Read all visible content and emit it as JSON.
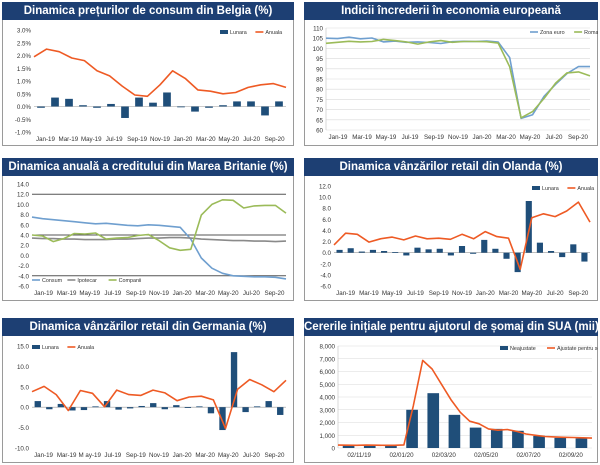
{
  "colors": {
    "title_bg": "#1d3f73",
    "bar": "#1f4e79",
    "orange": "#ee5a24",
    "blue_line": "#6f9fcf",
    "green_line": "#9bbb59",
    "gray_line": "#8a8a8a"
  },
  "chart_data": [
    {
      "id": "c1",
      "type": "bar+line",
      "title": "Dinamica prețurilor de consum din Belgia (%)",
      "ylim": [
        -1.0,
        3.0
      ],
      "yticks": [
        -1.0,
        -0.5,
        0.0,
        0.5,
        1.0,
        1.5,
        2.0,
        2.5,
        3.0
      ],
      "ytick_labels": [
        "-1.0%",
        "-0.5%",
        "0.0%",
        "0.5%",
        "1.0%",
        "1.5%",
        "2.0%",
        "2.5%",
        "3.0%"
      ],
      "xtick_labels": [
        "Jan-19",
        "Mar-19",
        "May-19",
        "Jul-19",
        "Sep-19",
        "Nov-19",
        "Jan-20",
        "Mar-20",
        "May-20",
        "Jul-20",
        "Sep-20"
      ],
      "legend": "top-right",
      "series": [
        {
          "name": "Lunara",
          "kind": "bar",
          "values": [
            -0.05,
            0.35,
            0.3,
            0.05,
            -0.05,
            0.1,
            -0.45,
            0.35,
            0.15,
            0.55,
            -0.02,
            -0.2,
            -0.05,
            0.05,
            0.2,
            0.2,
            -0.35,
            0.2
          ]
        },
        {
          "name": "Anuala",
          "kind": "line",
          "values": [
            1.95,
            2.25,
            2.15,
            1.9,
            1.8,
            1.4,
            1.2,
            0.8,
            0.45,
            0.4,
            0.85,
            1.4,
            1.1,
            0.65,
            0.6,
            0.5,
            0.55,
            0.75,
            0.85,
            0.9,
            0.75
          ]
        }
      ]
    },
    {
      "id": "c2",
      "type": "line",
      "title": "Indicii încrederii în economia europeană",
      "ylim": [
        60,
        110
      ],
      "yticks": [
        60,
        65,
        70,
        75,
        80,
        85,
        90,
        95,
        100,
        105,
        110
      ],
      "ytick_labels": [
        "60",
        "65",
        "70",
        "75",
        "80",
        "85",
        "90",
        "95",
        "100",
        "105",
        "110"
      ],
      "xtick_labels": [
        "Jan-19",
        "Mar-19",
        "May-19",
        "Jul-19",
        "Sep-19",
        "Nov-19",
        "Jan-20",
        "Mar-20",
        "May-20",
        "Jul-20",
        "Sep-20"
      ],
      "legend": "top-right",
      "series": [
        {
          "name": "Zona euro",
          "kind": "line",
          "values": [
            105,
            104.8,
            105.5,
            104.7,
            105.1,
            103.2,
            103.6,
            103,
            103.2,
            102.9,
            102.4,
            103.3,
            103.5,
            103.4,
            103.6,
            103.1,
            95.5,
            65.7,
            67.5,
            76.5,
            82.4,
            87.7,
            91.1,
            91.1
          ]
        },
        {
          "name": "Romania",
          "kind": "line",
          "values": [
            102.5,
            103,
            103.5,
            103.2,
            103.4,
            104.4,
            103.8,
            103.2,
            102.1,
            103.2,
            103.8,
            103,
            103.4,
            103.4,
            103.3,
            102.6,
            91,
            66,
            69,
            75.5,
            83,
            88,
            88.5,
            86.5
          ]
        }
      ]
    },
    {
      "id": "c3",
      "type": "line",
      "title": "Dinamica anuală a creditului din Marea Britanie (%)",
      "ylim": [
        -6,
        14
      ],
      "yticks": [
        -6,
        -4,
        -2,
        0,
        2,
        4,
        6,
        8,
        10,
        12,
        14
      ],
      "ytick_labels": [
        "-6.0",
        "-4.0",
        "-2.0",
        "0.0",
        "2.0",
        "4.0",
        "6.0",
        "8.0",
        "10.0",
        "12.0",
        "14.0"
      ],
      "xtick_labels": [
        "Jan-19",
        "Mar-19",
        "May-19",
        "Jul-19",
        "Sep-19",
        "Nov-19",
        "Jan-20",
        "Mar-20",
        "May-20",
        "Jul-20",
        "Sep-20"
      ],
      "legend": "bottom-left",
      "series": [
        {
          "name": "Consum",
          "kind": "line",
          "values": [
            7.5,
            7.2,
            7,
            6.8,
            6.6,
            6.4,
            6.2,
            6.3,
            6.1,
            5.9,
            5.8,
            6,
            5.9,
            5.7,
            5.5,
            3.2,
            -0.5,
            -2.5,
            -3.5,
            -4,
            -4.1,
            -4.2,
            -4.2,
            -4.3,
            -4.6
          ]
        },
        {
          "name": "Ipotecar",
          "kind": "line",
          "values": [
            3.4,
            3.3,
            3.3,
            3.2,
            3.2,
            3.1,
            3.1,
            3.1,
            3.2,
            3.2,
            3.3,
            3.4,
            3.4,
            3.5,
            3.5,
            3.4,
            3.2,
            3.1,
            3,
            2.9,
            2.9,
            2.8,
            2.8,
            2.7,
            2.8
          ]
        },
        {
          "name": "Companii",
          "kind": "line",
          "values": [
            4,
            3.8,
            2.7,
            3.3,
            4.3,
            4.2,
            4.4,
            3.2,
            3.4,
            3.5,
            3.9,
            4.1,
            2.9,
            1.5,
            1,
            1.2,
            7.9,
            10,
            10.9,
            10.8,
            9.3,
            9.7,
            9.8,
            9.8,
            8.3
          ]
        }
      ]
    },
    {
      "id": "c4",
      "type": "bar+line",
      "title": "Dinamica vânzărilor retail din Olanda (%)",
      "ylim": [
        -6,
        12
      ],
      "yticks": [
        -6,
        -4,
        -2,
        0,
        2,
        4,
        6,
        8,
        10,
        12
      ],
      "ytick_labels": [
        "-6.0",
        "-4.0",
        "-2.0",
        "0.0",
        "2.0",
        "4.0",
        "6.0",
        "8.0",
        "10.0",
        "12.0"
      ],
      "xtick_labels": [
        "Jan-19",
        "Mar-19",
        "May-19",
        "Jul-19",
        "Sep-19",
        "Nov-19",
        "Jan-20",
        "Mar-20",
        "May-20",
        "Jul-20",
        "Sep-20"
      ],
      "legend": "top-right",
      "series": [
        {
          "name": "Lunara",
          "kind": "bar",
          "values": [
            0.5,
            0.8,
            0.2,
            0.5,
            0.3,
            0.1,
            -0.5,
            0.9,
            0.6,
            0.7,
            -0.5,
            1.2,
            -0.2,
            2.3,
            0.7,
            -1.1,
            -3.5,
            9.3,
            1.8,
            0.3,
            -0.8,
            1.5,
            -1.6
          ]
        },
        {
          "name": "Anuala",
          "kind": "line",
          "values": [
            1.4,
            3.5,
            3.3,
            1.9,
            2.5,
            2.8,
            2.3,
            3,
            2.5,
            2.6,
            2.4,
            3.3,
            2.5,
            3.8,
            2.9,
            2.6,
            -3,
            6.3,
            7,
            6.5,
            7.5,
            9.1,
            5.5
          ]
        }
      ]
    },
    {
      "id": "c5",
      "type": "bar+line",
      "title": "Dinamica vânzărilor retail din Germania (%)",
      "ylim": [
        -10,
        15
      ],
      "yticks": [
        -10,
        -5,
        0,
        5,
        10,
        15
      ],
      "ytick_labels": [
        "-10.0",
        "-5.0",
        "0.0",
        "5.0",
        "10.0",
        "15.0"
      ],
      "xtick_labels": [
        "Jan-19",
        "Mar-19",
        "M ay-19",
        "Jul-19",
        "Sep-19",
        "Nov-19",
        "Jan-20",
        "Mar-20",
        "May-20",
        "Jul-20",
        "Sep-20"
      ],
      "legend": "top-left",
      "series": [
        {
          "name": "Lunara",
          "kind": "bar",
          "values": [
            1.5,
            -0.5,
            0.8,
            -0.8,
            -0.7,
            0.2,
            1.5,
            -0.6,
            -0.3,
            0.3,
            1,
            -0.5,
            0.5,
            -0.1,
            0.2,
            -1.5,
            -5.6,
            13.5,
            -1.2,
            0.2,
            1.5,
            -1.9
          ]
        },
        {
          "name": "Anuala",
          "kind": "line",
          "values": [
            3.8,
            5.1,
            3.1,
            -0.8,
            4.1,
            3.4,
            0.1,
            4.2,
            3.1,
            2.9,
            4.2,
            3.5,
            1.6,
            2.5,
            2.7,
            1.8,
            -5.2,
            4.4,
            6.8,
            5.5,
            3.8,
            6.6
          ]
        }
      ]
    },
    {
      "id": "c6",
      "type": "bar+line",
      "title": "Cererile inițiale pentru ajutorul de șomaj din SUA (mii)",
      "ylim": [
        0,
        8000
      ],
      "yticks": [
        0,
        1000,
        2000,
        3000,
        4000,
        5000,
        6000,
        7000,
        8000
      ],
      "ytick_labels": [
        "0",
        "1,000",
        "2,000",
        "3,000",
        "4,000",
        "5,000",
        "6,000",
        "7,000",
        "8,000"
      ],
      "xtick_labels": [
        "02/11/19",
        "02/01/20",
        "02/03/20",
        "02/05/20",
        "02/07/20",
        "02/09/20"
      ],
      "legend": "top-right",
      "series": [
        {
          "name": "Neajustate",
          "kind": "bar",
          "values": [
            250,
            200,
            180,
            3000,
            4300,
            2600,
            1600,
            1500,
            1350,
            950,
            800,
            750
          ]
        },
        {
          "name": "Ajustate pentru sezonalitate",
          "kind": "line",
          "values": [
            230,
            220,
            215,
            230,
            220,
            215,
            210,
            240,
            3300,
            6867,
            6200,
            5000,
            3800,
            2800,
            2100,
            1900,
            1500,
            1400,
            1450,
            1300,
            1100,
            1000,
            900,
            870,
            840,
            820,
            800,
            780
          ]
        }
      ]
    }
  ]
}
